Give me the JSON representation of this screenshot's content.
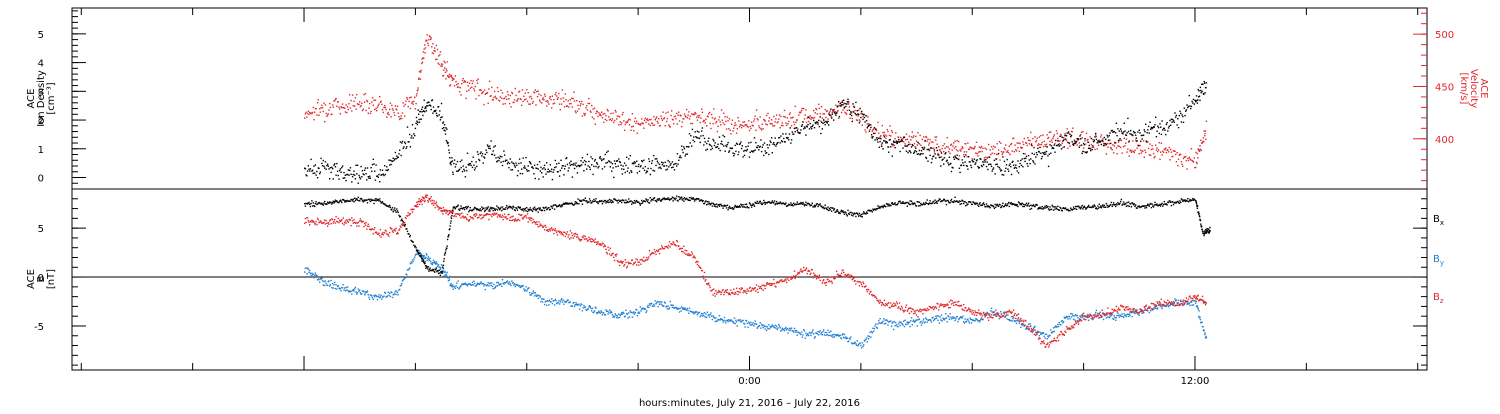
{
  "chart_data": [
    {
      "type": "scatter",
      "panel": "top",
      "y_axis_left": {
        "label_lines": [
          "ACE",
          "Ion Density",
          "[cm⁻³]"
        ],
        "range": [
          -0.4,
          5.9
        ],
        "ticks": [
          "0",
          "1",
          "2",
          "3",
          "4",
          "5"
        ]
      },
      "y_axis_right": {
        "label_lines": [
          "ACE",
          "Velocity",
          "[km/s]"
        ],
        "range": [
          352,
          525
        ],
        "ticks": [
          "400",
          "450",
          "500"
        ],
        "color": "#e0282c"
      },
      "series": [
        {
          "key": "density",
          "color": "#000000",
          "axis": "left",
          "points": [
            [
              -12,
              0.3
            ],
            [
              -11.5,
              0.35
            ],
            [
              -11,
              0.2
            ],
            [
              -10.5,
              0.15
            ],
            [
              -10,
              0.2
            ],
            [
              -9.5,
              0.7
            ],
            [
              -9,
              1.9
            ],
            [
              -8.7,
              2.6
            ],
            [
              -8.3,
              2.2
            ],
            [
              -8,
              0.3
            ],
            [
              -7.5,
              0.5
            ],
            [
              -7,
              1.0
            ],
            [
              -6.5,
              0.4
            ],
            [
              -6,
              0.35
            ],
            [
              -5.5,
              0.3
            ],
            [
              -5,
              0.4
            ],
            [
              -4.5,
              0.4
            ],
            [
              -4,
              0.6
            ],
            [
              -3.5,
              0.45
            ],
            [
              -3,
              0.4
            ],
            [
              -2.5,
              0.5
            ],
            [
              -2,
              0.5
            ],
            [
              -1.5,
              1.5
            ],
            [
              -1,
              1.2
            ],
            [
              -0.5,
              1.0
            ],
            [
              0,
              1.0
            ],
            [
              0.5,
              1.1
            ],
            [
              1,
              1.4
            ],
            [
              1.5,
              1.8
            ],
            [
              2,
              1.9
            ],
            [
              2.5,
              2.6
            ],
            [
              3,
              2.2
            ],
            [
              3.5,
              1.2
            ],
            [
              4,
              1.3
            ],
            [
              4.5,
              1.0
            ],
            [
              5,
              0.8
            ],
            [
              5.5,
              0.6
            ],
            [
              6,
              0.5
            ],
            [
              6.5,
              0.5
            ],
            [
              7,
              0.4
            ],
            [
              7.5,
              0.7
            ],
            [
              8,
              0.9
            ],
            [
              8.5,
              1.4
            ],
            [
              9,
              1.2
            ],
            [
              9.5,
              1.3
            ],
            [
              10,
              1.6
            ],
            [
              10.5,
              1.5
            ],
            [
              11,
              1.8
            ],
            [
              11.5,
              2.0
            ],
            [
              12,
              2.7
            ],
            [
              12.3,
              3.2
            ]
          ]
        },
        {
          "key": "velocity",
          "color": "#e0282c",
          "axis": "right",
          "points": [
            [
              -12,
              425
            ],
            [
              -11.5,
              430
            ],
            [
              -11,
              432
            ],
            [
              -10.5,
              436
            ],
            [
              -10,
              434
            ],
            [
              -9.5,
              425
            ],
            [
              -9,
              440
            ],
            [
              -8.7,
              500
            ],
            [
              -8.3,
              470
            ],
            [
              -8,
              455
            ],
            [
              -7.5,
              450
            ],
            [
              -7,
              445
            ],
            [
              -6.5,
              440
            ],
            [
              -6,
              442
            ],
            [
              -5.5,
              438
            ],
            [
              -5,
              437
            ],
            [
              -4.5,
              432
            ],
            [
              -4,
              425
            ],
            [
              -3.5,
              418
            ],
            [
              -3,
              414
            ],
            [
              -2.5,
              418
            ],
            [
              -2,
              420
            ],
            [
              -1.5,
              422
            ],
            [
              -1,
              420
            ],
            [
              -0.5,
              415
            ],
            [
              0,
              412
            ],
            [
              0.5,
              418
            ],
            [
              1,
              420
            ],
            [
              1.5,
              422
            ],
            [
              2,
              425
            ],
            [
              2.5,
              430
            ],
            [
              3,
              420
            ],
            [
              3.5,
              405
            ],
            [
              4,
              400
            ],
            [
              4.5,
              398
            ],
            [
              5,
              396
            ],
            [
              5.5,
              392
            ],
            [
              6,
              390
            ],
            [
              6.5,
              388
            ],
            [
              7,
              392
            ],
            [
              7.5,
              398
            ],
            [
              8,
              400
            ],
            [
              8.5,
              402
            ],
            [
              9,
              398
            ],
            [
              9.5,
              396
            ],
            [
              10,
              395
            ],
            [
              10.5,
              392
            ],
            [
              11,
              390
            ],
            [
              11.5,
              385
            ],
            [
              12,
              380
            ],
            [
              12.3,
              410
            ]
          ]
        }
      ]
    },
    {
      "type": "scatter",
      "panel": "bottom",
      "y_axis_left": {
        "label_lines": [
          "ACE",
          "B",
          "[nT]"
        ],
        "range": [
          -9.5,
          9.0
        ],
        "ticks": [
          "-5",
          "0",
          "5"
        ]
      },
      "legend_position": "right",
      "series": [
        {
          "name": "B",
          "subscript": "x",
          "color": "#000000",
          "points": [
            [
              -12,
              7.5
            ],
            [
              -11.5,
              7.6
            ],
            [
              -11,
              7.8
            ],
            [
              -10.5,
              8.0
            ],
            [
              -10,
              7.8
            ],
            [
              -9.5,
              6.8
            ],
            [
              -9,
              3.0
            ],
            [
              -8.7,
              1.0
            ],
            [
              -8.3,
              0.5
            ],
            [
              -8,
              7.2
            ],
            [
              -7.5,
              7.0
            ],
            [
              -7,
              7.0
            ],
            [
              -6.5,
              7.2
            ],
            [
              -6,
              7.0
            ],
            [
              -5.5,
              7.0
            ],
            [
              -5,
              7.5
            ],
            [
              -4.5,
              7.8
            ],
            [
              -4,
              7.8
            ],
            [
              -3.5,
              7.9
            ],
            [
              -3,
              7.7
            ],
            [
              -2.5,
              8.0
            ],
            [
              -2,
              8.1
            ],
            [
              -1.5,
              8.0
            ],
            [
              -1,
              7.5
            ],
            [
              -0.5,
              7.2
            ],
            [
              0,
              7.4
            ],
            [
              0.5,
              7.8
            ],
            [
              1,
              7.5
            ],
            [
              1.5,
              7.6
            ],
            [
              2,
              7.2
            ],
            [
              2.5,
              6.6
            ],
            [
              3,
              6.4
            ],
            [
              3.5,
              7.2
            ],
            [
              4,
              7.6
            ],
            [
              4.5,
              7.5
            ],
            [
              5,
              7.7
            ],
            [
              5.5,
              7.9
            ],
            [
              6,
              7.6
            ],
            [
              6.5,
              7.3
            ],
            [
              7,
              7.5
            ],
            [
              7.5,
              7.4
            ],
            [
              8,
              7.1
            ],
            [
              8.5,
              7.0
            ],
            [
              9,
              7.2
            ],
            [
              9.5,
              7.3
            ],
            [
              10,
              7.6
            ],
            [
              10.5,
              7.3
            ],
            [
              11,
              7.4
            ],
            [
              11.5,
              7.8
            ],
            [
              12,
              8.0
            ],
            [
              12.2,
              4.5
            ],
            [
              12.4,
              5.0
            ]
          ]
        },
        {
          "name": "B",
          "subscript": "y",
          "color": "#1f7fd1",
          "points": [
            [
              -12,
              1.0
            ],
            [
              -11.5,
              -0.5
            ],
            [
              -11,
              -1.0
            ],
            [
              -10.5,
              -1.5
            ],
            [
              -10,
              -2.0
            ],
            [
              -9.5,
              -1.5
            ],
            [
              -9,
              2.5
            ],
            [
              -8.7,
              2.0
            ],
            [
              -8.3,
              1.0
            ],
            [
              -8,
              -1.0
            ],
            [
              -7.5,
              -0.5
            ],
            [
              -7,
              -0.8
            ],
            [
              -6.5,
              -0.5
            ],
            [
              -6,
              -1.2
            ],
            [
              -5.5,
              -2.5
            ],
            [
              -5,
              -2.5
            ],
            [
              -4.5,
              -3.0
            ],
            [
              -4,
              -3.5
            ],
            [
              -3.5,
              -3.8
            ],
            [
              -3,
              -3.5
            ],
            [
              -2.5,
              -2.5
            ],
            [
              -2,
              -3.0
            ],
            [
              -1.5,
              -3.5
            ],
            [
              -1,
              -4.0
            ],
            [
              -0.5,
              -4.5
            ],
            [
              0,
              -4.8
            ],
            [
              0.5,
              -5.0
            ],
            [
              1,
              -5.2
            ],
            [
              1.5,
              -5.8
            ],
            [
              2,
              -5.6
            ],
            [
              2.5,
              -6.0
            ],
            [
              3,
              -7.0
            ],
            [
              3.5,
              -4.5
            ],
            [
              4,
              -4.8
            ],
            [
              4.5,
              -4.5
            ],
            [
              5,
              -4.2
            ],
            [
              5.5,
              -4.0
            ],
            [
              6,
              -4.5
            ],
            [
              6.5,
              -3.5
            ],
            [
              7,
              -4.2
            ],
            [
              7.5,
              -5.0
            ],
            [
              8,
              -6.0
            ],
            [
              8.5,
              -4.0
            ],
            [
              9,
              -4.0
            ],
            [
              9.5,
              -3.8
            ],
            [
              10,
              -4.0
            ],
            [
              10.5,
              -3.5
            ],
            [
              11,
              -3.0
            ],
            [
              11.5,
              -2.5
            ],
            [
              12,
              -2.5
            ],
            [
              12.3,
              -6.5
            ]
          ]
        },
        {
          "name": "B",
          "subscript": "z",
          "color": "#e0282c",
          "points": [
            [
              -12,
              5.8
            ],
            [
              -11.5,
              5.6
            ],
            [
              -11,
              5.8
            ],
            [
              -10.5,
              5.6
            ],
            [
              -10,
              4.5
            ],
            [
              -9.5,
              4.8
            ],
            [
              -9,
              7.5
            ],
            [
              -8.7,
              8.2
            ],
            [
              -8.3,
              7.0
            ],
            [
              -8,
              6.5
            ],
            [
              -7.5,
              6.2
            ],
            [
              -7,
              6.4
            ],
            [
              -6.5,
              6.0
            ],
            [
              -6,
              6.2
            ],
            [
              -5.5,
              5.0
            ],
            [
              -5,
              4.5
            ],
            [
              -4.5,
              4.0
            ],
            [
              -4,
              3.5
            ],
            [
              -3.5,
              1.5
            ],
            [
              -3,
              1.5
            ],
            [
              -2.5,
              2.8
            ],
            [
              -2,
              3.5
            ],
            [
              -1.5,
              2.0
            ],
            [
              -1,
              -1.5
            ],
            [
              -0.5,
              -1.5
            ],
            [
              0,
              -1.2
            ],
            [
              0.5,
              -0.8
            ],
            [
              1,
              -0.2
            ],
            [
              1.5,
              1.0
            ],
            [
              2,
              -0.5
            ],
            [
              2.5,
              0.5
            ],
            [
              3,
              -0.5
            ],
            [
              3.5,
              -2.5
            ],
            [
              4,
              -3.0
            ],
            [
              4.5,
              -3.5
            ],
            [
              5,
              -3.0
            ],
            [
              5.5,
              -2.5
            ],
            [
              6,
              -3.5
            ],
            [
              6.5,
              -4.0
            ],
            [
              7,
              -3.5
            ],
            [
              7.5,
              -5.0
            ],
            [
              8,
              -7.0
            ],
            [
              8.5,
              -5.5
            ],
            [
              9,
              -4.0
            ],
            [
              9.5,
              -3.8
            ],
            [
              10,
              -3.0
            ],
            [
              10.5,
              -3.5
            ],
            [
              11,
              -2.5
            ],
            [
              11.5,
              -2.8
            ],
            [
              12,
              -2.0
            ],
            [
              12.3,
              -2.5
            ]
          ]
        }
      ]
    }
  ],
  "x_axis": {
    "label": "hours:minutes, July 21, 2016 – July 22, 2016",
    "range": [
      -18.25,
      18.25
    ],
    "tick_labels": [
      {
        "value": 0,
        "label": "0:00"
      },
      {
        "value": 12,
        "label": "12:00"
      }
    ]
  }
}
